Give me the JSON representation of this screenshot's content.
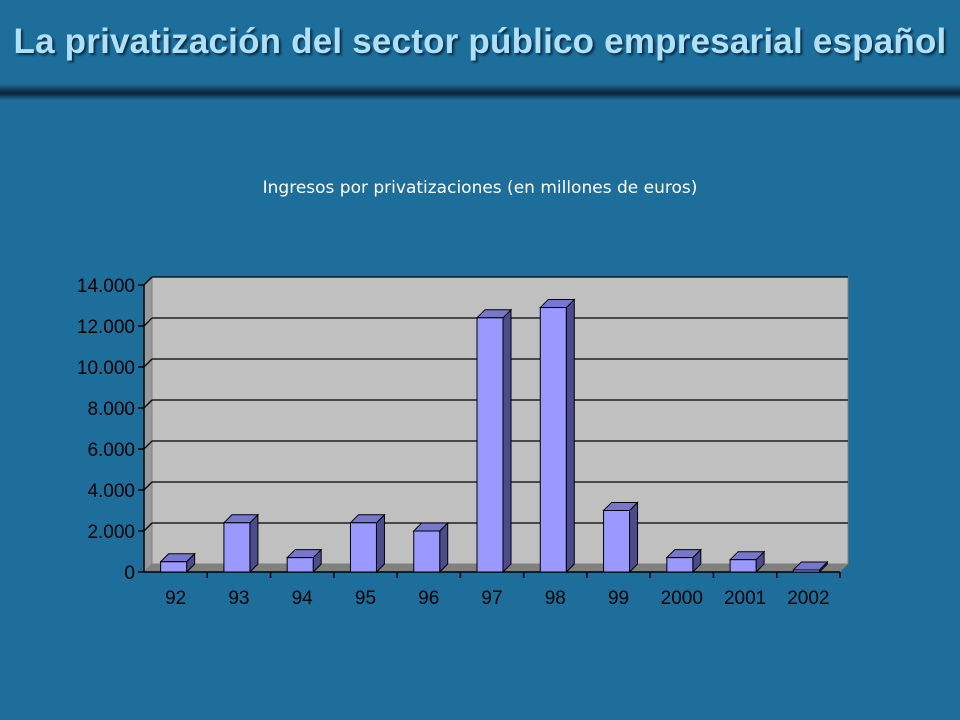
{
  "slide": {
    "title": "La privatización del sector público empresarial español"
  },
  "chart_data": {
    "type": "bar",
    "title": "Ingresos por privatizaciones (en millones de euros)",
    "categories": [
      "92",
      "93",
      "94",
      "95",
      "96",
      "97",
      "98",
      "99",
      "2000",
      "2001",
      "2002"
    ],
    "values": [
      500,
      2400,
      700,
      2400,
      2000,
      12400,
      12900,
      3000,
      700,
      600,
      100
    ],
    "y_tick_labels": [
      "0",
      "2.000",
      "4.000",
      "6.000",
      "8.000",
      "10.000",
      "12.000",
      "14.000"
    ],
    "y_ticks": [
      0,
      2000,
      4000,
      6000,
      8000,
      10000,
      12000,
      14000
    ],
    "ylim": [
      0,
      14000
    ],
    "grid": true,
    "colors": {
      "bar_front": "#9999ff",
      "bar_side": "#4c4c8c",
      "bar_top": "#7777cc",
      "plot_back": "#c0c0c0",
      "plot_floor": "#808080",
      "background": "#1e6e9c"
    }
  }
}
